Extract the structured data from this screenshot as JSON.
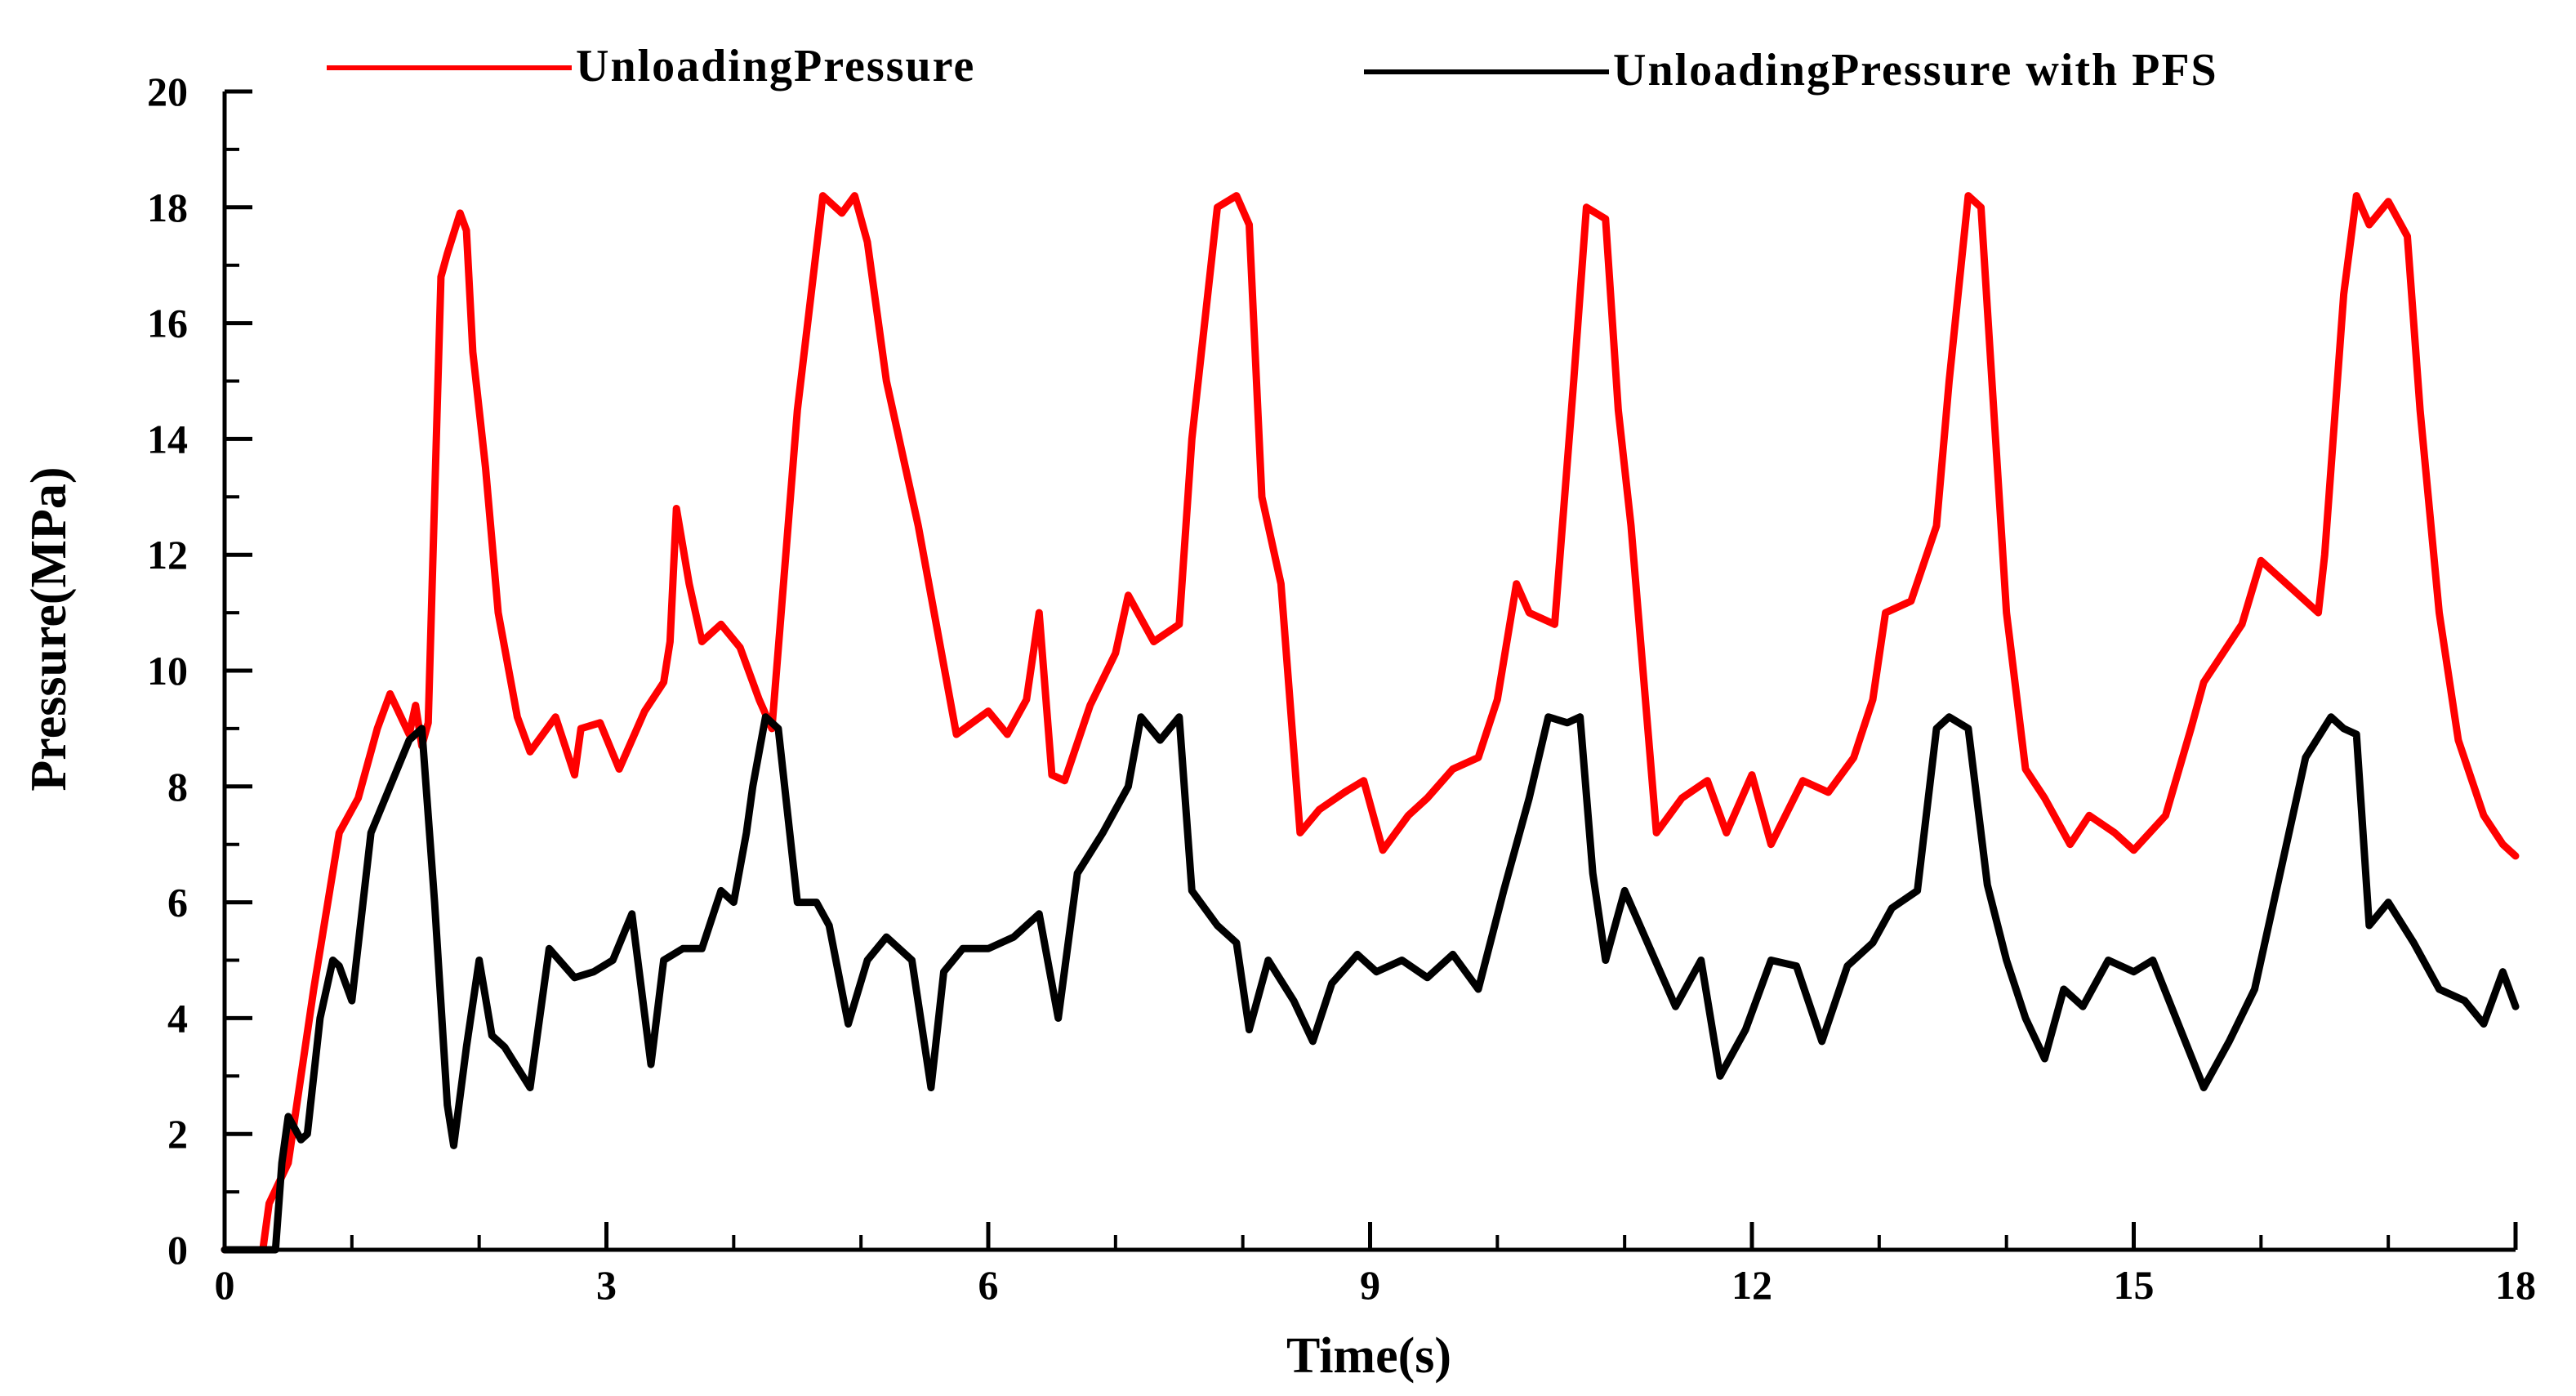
{
  "chart_data": {
    "type": "line",
    "title": "",
    "xlabel": "Time(s)",
    "ylabel": "Pressure(MPa)",
    "xlim": [
      0,
      18
    ],
    "ylim": [
      0,
      20
    ],
    "xticks": [
      0,
      3,
      6,
      9,
      12,
      15,
      18
    ],
    "yticks": [
      0,
      2,
      4,
      6,
      8,
      10,
      12,
      14,
      16,
      18,
      20
    ],
    "legend_position": "top",
    "series": [
      {
        "name": "UnloadingPressure",
        "color": "#ff0000",
        "x": [
          0,
          0.3,
          0.35,
          0.5,
          0.7,
          0.9,
          1.05,
          1.2,
          1.3,
          1.45,
          1.5,
          1.55,
          1.6,
          1.7,
          1.75,
          1.85,
          1.9,
          1.95,
          2.05,
          2.15,
          2.3,
          2.4,
          2.6,
          2.75,
          2.8,
          2.95,
          3.1,
          3.3,
          3.45,
          3.5,
          3.55,
          3.65,
          3.75,
          3.9,
          4.05,
          4.2,
          4.3,
          4.5,
          4.7,
          4.85,
          4.95,
          5.05,
          5.2,
          5.45,
          5.75,
          6.0,
          6.15,
          6.3,
          6.4,
          6.5,
          6.6,
          6.8,
          7.0,
          7.1,
          7.3,
          7.5,
          7.6,
          7.8,
          7.95,
          8.05,
          8.15,
          8.3,
          8.45,
          8.6,
          8.8,
          8.95,
          9.1,
          9.3,
          9.45,
          9.65,
          9.85,
          10.0,
          10.15,
          10.25,
          10.45,
          10.6,
          10.7,
          10.85,
          10.95,
          11.05,
          11.25,
          11.45,
          11.65,
          11.8,
          12.0,
          12.15,
          12.4,
          12.6,
          12.8,
          12.95,
          13.05,
          13.25,
          13.45,
          13.55,
          13.7,
          13.8,
          13.9,
          14.0,
          14.15,
          14.3,
          14.5,
          14.65,
          14.85,
          15.0,
          15.25,
          15.45,
          15.55,
          15.85,
          16.0,
          16.25,
          16.45,
          16.5,
          16.65,
          16.75,
          16.85,
          17.0,
          17.15,
          17.25,
          17.4,
          17.55,
          17.75,
          17.9,
          18.0
        ],
        "values": [
          0,
          0,
          0.8,
          1.5,
          4.5,
          7.2,
          7.8,
          9.0,
          9.6,
          8.9,
          9.4,
          8.7,
          9.1,
          16.8,
          17.2,
          17.9,
          17.6,
          15.5,
          13.5,
          11.0,
          9.2,
          8.6,
          9.2,
          8.2,
          9.0,
          9.1,
          8.3,
          9.3,
          9.8,
          10.5,
          12.8,
          11.5,
          10.5,
          10.8,
          10.4,
          9.5,
          9.0,
          14.5,
          18.2,
          17.9,
          18.2,
          17.4,
          15.0,
          12.5,
          8.9,
          9.3,
          8.9,
          9.5,
          11.0,
          8.2,
          8.1,
          9.4,
          10.3,
          11.3,
          10.5,
          10.8,
          14.0,
          18.0,
          18.2,
          17.7,
          13.0,
          11.5,
          7.2,
          7.6,
          7.9,
          8.1,
          6.9,
          7.5,
          7.8,
          8.3,
          8.5,
          9.5,
          11.5,
          11.0,
          10.8,
          15.0,
          18.0,
          17.8,
          14.5,
          12.5,
          7.2,
          7.8,
          8.1,
          7.2,
          8.2,
          7.0,
          8.1,
          7.9,
          8.5,
          9.5,
          11.0,
          11.2,
          12.5,
          15.0,
          18.2,
          18.0,
          14.5,
          11.0,
          8.3,
          7.8,
          7.0,
          7.5,
          7.2,
          6.9,
          7.5,
          9.0,
          9.8,
          10.8,
          11.9,
          11.4,
          11.0,
          12.0,
          16.5,
          18.2,
          17.7,
          18.1,
          17.5,
          14.5,
          11.0,
          8.8,
          7.5,
          7.0,
          6.8
        ]
      },
      {
        "name": "UnloadingPressure with PFS",
        "color": "#000000",
        "x": [
          0,
          0.4,
          0.45,
          0.5,
          0.6,
          0.65,
          0.75,
          0.85,
          0.9,
          1.0,
          1.15,
          1.3,
          1.45,
          1.55,
          1.65,
          1.75,
          1.8,
          1.9,
          2.0,
          2.1,
          2.2,
          2.4,
          2.55,
          2.75,
          2.9,
          3.05,
          3.2,
          3.35,
          3.45,
          3.6,
          3.75,
          3.9,
          4.0,
          4.1,
          4.15,
          4.25,
          4.35,
          4.5,
          4.65,
          4.75,
          4.9,
          5.05,
          5.2,
          5.4,
          5.55,
          5.65,
          5.8,
          6.0,
          6.2,
          6.4,
          6.55,
          6.7,
          6.9,
          7.1,
          7.2,
          7.35,
          7.5,
          7.6,
          7.8,
          7.95,
          8.05,
          8.2,
          8.4,
          8.55,
          8.7,
          8.9,
          9.05,
          9.25,
          9.45,
          9.65,
          9.85,
          10.05,
          10.25,
          10.4,
          10.55,
          10.65,
          10.75,
          10.85,
          11.0,
          11.2,
          11.4,
          11.6,
          11.75,
          11.95,
          12.15,
          12.35,
          12.55,
          12.75,
          12.95,
          13.1,
          13.3,
          13.45,
          13.55,
          13.7,
          13.85,
          14.0,
          14.15,
          14.3,
          14.45,
          14.6,
          14.8,
          15.0,
          15.15,
          15.35,
          15.55,
          15.75,
          15.95,
          16.15,
          16.35,
          16.55,
          16.65,
          16.75,
          16.85,
          17.0,
          17.2,
          17.4,
          17.6,
          17.75,
          17.9,
          18.0
        ],
        "values": [
          0,
          0,
          1.5,
          2.3,
          1.9,
          2.0,
          4.0,
          5.0,
          4.9,
          4.3,
          7.2,
          8.0,
          8.8,
          9.0,
          6.0,
          2.5,
          1.8,
          3.5,
          5.0,
          3.7,
          3.5,
          2.8,
          5.2,
          4.7,
          4.8,
          5.0,
          5.8,
          3.2,
          5.0,
          5.2,
          5.2,
          6.2,
          6.0,
          7.2,
          8.0,
          9.2,
          9.0,
          6.0,
          6.0,
          5.6,
          3.9,
          5.0,
          5.4,
          5.0,
          2.8,
          4.8,
          5.2,
          5.2,
          5.4,
          5.8,
          4.0,
          6.5,
          7.2,
          8.0,
          9.2,
          8.8,
          9.2,
          6.2,
          5.6,
          5.3,
          3.8,
          5.0,
          4.3,
          3.6,
          4.6,
          5.1,
          4.8,
          5.0,
          4.7,
          5.1,
          4.5,
          6.2,
          7.8,
          9.2,
          9.1,
          9.2,
          6.5,
          5.0,
          6.2,
          5.2,
          4.2,
          5.0,
          3.0,
          3.8,
          5.0,
          4.9,
          3.6,
          4.9,
          5.3,
          5.9,
          6.2,
          9.0,
          9.2,
          9.0,
          6.3,
          5.0,
          4.0,
          3.3,
          4.5,
          4.2,
          5.0,
          4.8,
          5.0,
          3.9,
          2.8,
          3.6,
          4.5,
          6.5,
          8.5,
          9.2,
          9.0,
          8.9,
          5.6,
          6.0,
          5.3,
          4.5,
          4.3,
          3.9,
          4.8,
          4.2
        ]
      }
    ]
  }
}
